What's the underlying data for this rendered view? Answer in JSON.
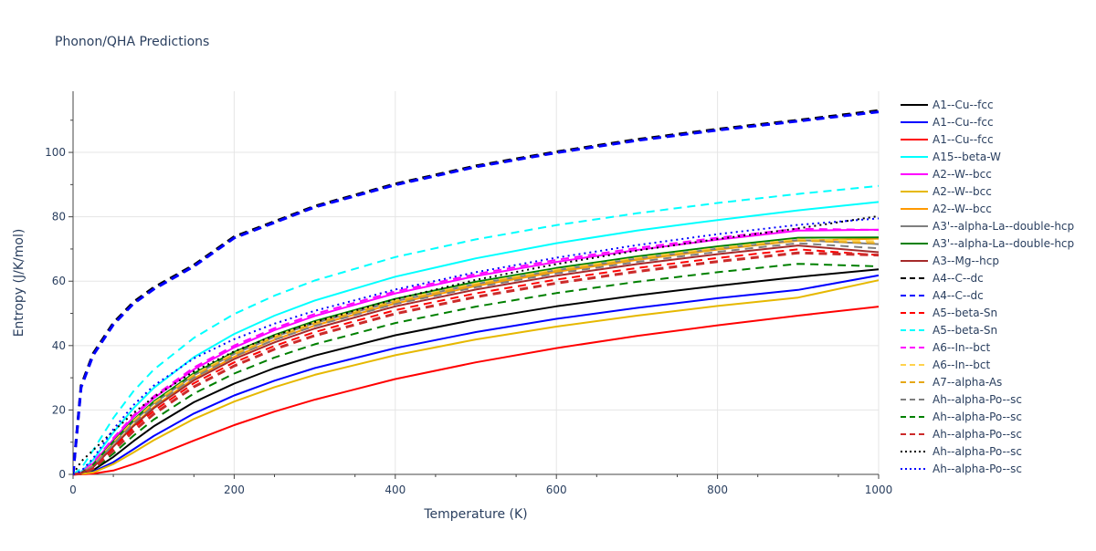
{
  "chart_data": {
    "type": "line",
    "title": "Phonon/QHA Predictions",
    "xlabel": "Temperature (K)",
    "ylabel": "Entropy (J/K/mol)",
    "xlim": [
      0,
      1000
    ],
    "ylim": [
      0,
      119
    ],
    "xticks": [
      0,
      200,
      400,
      600,
      800,
      1000
    ],
    "yticks": [
      0,
      20,
      40,
      60,
      80,
      100
    ],
    "grid": true,
    "legend_position": "right",
    "x": [
      0,
      10,
      25,
      50,
      75,
      100,
      150,
      200,
      250,
      300,
      400,
      500,
      600,
      700,
      800,
      900,
      1000
    ],
    "series": [
      {
        "name": "A1--Cu--fcc",
        "color": "#000000",
        "dash": "solid",
        "values": [
          0,
          0.2,
          1.3,
          5.4,
          10.3,
          14.9,
          22.4,
          28.2,
          33.0,
          36.9,
          43.2,
          48.1,
          52.2,
          55.6,
          58.6,
          61.3,
          63.7
        ]
      },
      {
        "name": "A1--Cu--fcc",
        "color": "#0000ff",
        "dash": "solid",
        "values": [
          0,
          0.1,
          0.8,
          3.8,
          7.8,
          11.9,
          18.9,
          24.5,
          29.1,
          33.0,
          39.2,
          44.2,
          48.3,
          51.7,
          54.7,
          57.3,
          61.8
        ]
      },
      {
        "name": "A1--Cu--fcc",
        "color": "#ff0000",
        "dash": "solid",
        "values": [
          0,
          0.0,
          0.2,
          1.2,
          3.2,
          5.5,
          10.5,
          15.3,
          19.5,
          23.2,
          29.6,
          34.8,
          39.2,
          43.0,
          46.3,
          49.3,
          52.1
        ]
      },
      {
        "name": "A15--beta-W",
        "color": "#00ffff",
        "dash": "solid",
        "values": [
          0,
          0.8,
          4.5,
          13.0,
          20.5,
          26.8,
          36.4,
          43.6,
          49.3,
          54.0,
          61.4,
          67.1,
          71.8,
          75.7,
          79.0,
          82.0,
          84.6
        ]
      },
      {
        "name": "A2--W--bcc",
        "color": "#ff00ff",
        "dash": "solid",
        "values": [
          0,
          0.5,
          3.4,
          10.8,
          17.8,
          23.6,
          32.6,
          39.4,
          44.8,
          49.2,
          56.2,
          61.6,
          66.0,
          69.7,
          72.9,
          75.7,
          76.0
        ]
      },
      {
        "name": "A2--W--bcc",
        "color": "#e6b800",
        "dash": "solid",
        "values": [
          0,
          0.1,
          0.6,
          3.2,
          6.8,
          10.6,
          17.2,
          22.6,
          27.1,
          30.9,
          37.0,
          41.9,
          45.9,
          49.3,
          52.3,
          54.9,
          60.3
        ]
      },
      {
        "name": "A2--W--bcc",
        "color": "#ff9900",
        "dash": "solid",
        "values": [
          0,
          0.3,
          2.3,
          8.7,
          15.3,
          20.9,
          29.8,
          36.5,
          41.8,
          46.2,
          53.1,
          58.5,
          62.9,
          66.6,
          69.8,
          72.6,
          73.2
        ]
      },
      {
        "name": "A3'--alpha-La--double-hcp",
        "color": "#7f7f7f",
        "dash": "solid",
        "values": [
          0,
          0.4,
          2.8,
          9.7,
          16.4,
          22.0,
          30.8,
          37.4,
          42.7,
          47.0,
          53.8,
          59.1,
          63.4,
          67.0,
          70.1,
          72.8,
          71.5
        ]
      },
      {
        "name": "A3'--alpha-La--double-hcp",
        "color": "#008000",
        "dash": "solid",
        "values": [
          0,
          0.4,
          3.0,
          10.2,
          16.9,
          22.6,
          31.4,
          38.0,
          43.3,
          47.6,
          54.5,
          59.8,
          64.1,
          67.7,
          70.8,
          73.5,
          73.6
        ]
      },
      {
        "name": "A3--Mg--hcp",
        "color": "#a52a2a",
        "dash": "solid",
        "values": [
          0,
          0.3,
          2.2,
          8.6,
          15.0,
          20.5,
          29.2,
          35.8,
          41.0,
          45.3,
          52.2,
          57.4,
          61.7,
          65.3,
          68.4,
          71.1,
          69.0
        ]
      },
      {
        "name": "A4--C--dc",
        "color": "#000000",
        "dash": "dash",
        "values": [
          0,
          27.5,
          37.5,
          47.0,
          53.5,
          58.0,
          65.0,
          73.8,
          78.5,
          83.3,
          90.2,
          95.8,
          100.2,
          104.0,
          107.2,
          110.0,
          113.0
        ]
      },
      {
        "name": "A4--C--dc",
        "color": "#0000ff",
        "dash": "dash",
        "values": [
          0,
          27.0,
          37.0,
          46.5,
          53.0,
          57.5,
          64.6,
          73.4,
          78.2,
          83.0,
          89.9,
          95.5,
          99.9,
          103.7,
          106.9,
          109.7,
          112.6
        ]
      },
      {
        "name": "A5--beta-Sn",
        "color": "#ff0000",
        "dash": "dash",
        "values": [
          0,
          0.3,
          2.1,
          8.2,
          14.4,
          19.7,
          28.3,
          34.8,
          39.9,
          44.2,
          51.0,
          56.2,
          60.5,
          64.1,
          67.2,
          69.9,
          68.1
        ]
      },
      {
        "name": "A5--beta-Sn",
        "color": "#00ffff",
        "dash": "dash",
        "values": [
          0,
          1.8,
          7.5,
          17.5,
          25.8,
          32.5,
          42.4,
          49.8,
          55.5,
          60.2,
          67.5,
          73.0,
          77.4,
          81.1,
          84.3,
          87.1,
          89.6
        ]
      },
      {
        "name": "A6--In--bct",
        "color": "#ff00ff",
        "dash": "dash",
        "values": [
          0,
          0.6,
          3.7,
          11.3,
          18.3,
          24.2,
          33.2,
          40.0,
          45.4,
          49.8,
          56.8,
          62.2,
          66.6,
          70.3,
          73.5,
          76.3,
          75.9
        ]
      },
      {
        "name": "A6--In--bct",
        "color": "#ffd24d",
        "dash": "dash",
        "values": [
          0,
          0.4,
          2.9,
          9.9,
          16.6,
          22.2,
          31.0,
          37.6,
          42.9,
          47.2,
          54.0,
          59.3,
          63.6,
          67.2,
          70.3,
          73.0,
          72.4
        ]
      },
      {
        "name": "A7--alpha-As",
        "color": "#e6a817",
        "dash": "dash",
        "values": [
          0,
          0.4,
          2.7,
          9.6,
          16.2,
          21.8,
          30.6,
          37.2,
          42.5,
          46.8,
          53.6,
          58.9,
          63.2,
          66.8,
          69.9,
          72.6,
          71.8
        ]
      },
      {
        "name": "Ah--alpha-Po--sc",
        "color": "#7f7f7f",
        "dash": "dash",
        "values": [
          0,
          0.4,
          2.6,
          9.3,
          15.8,
          21.3,
          30.0,
          36.6,
          41.8,
          46.1,
          52.9,
          58.1,
          62.4,
          66.0,
          69.1,
          71.8,
          70.2
        ]
      },
      {
        "name": "Ah--alpha-Po--sc",
        "color": "#008000",
        "dash": "dash",
        "values": [
          0,
          0.2,
          1.5,
          6.4,
          12.0,
          17.0,
          25.1,
          31.3,
          36.3,
          40.4,
          47.0,
          52.1,
          56.3,
          59.8,
          62.8,
          65.4,
          64.6
        ]
      },
      {
        "name": "Ah--alpha-Po--sc",
        "color": "#cc2a2a",
        "dash": "dash",
        "values": [
          0,
          0.2,
          1.8,
          7.4,
          13.4,
          18.7,
          27.2,
          33.7,
          38.9,
          43.1,
          49.9,
          55.1,
          59.4,
          63.0,
          66.1,
          68.8,
          68.1
        ]
      },
      {
        "name": "Ah--alpha-Po--sc",
        "color": "#000000",
        "dash": "dot",
        "values": [
          0,
          4.0,
          7.5,
          13.5,
          19.0,
          24.0,
          32.0,
          38.2,
          43.1,
          47.3,
          54.4,
          60.4,
          65.3,
          69.5,
          73.1,
          76.4,
          80.2
        ]
      },
      {
        "name": "Ah--alpha-Po--sc",
        "color": "#0000ff",
        "dash": "dot",
        "values": [
          0,
          1.0,
          5.0,
          14.0,
          21.5,
          27.5,
          36.0,
          42.0,
          46.8,
          50.8,
          57.4,
          62.8,
          67.3,
          71.2,
          74.6,
          77.5,
          79.5
        ]
      }
    ]
  }
}
